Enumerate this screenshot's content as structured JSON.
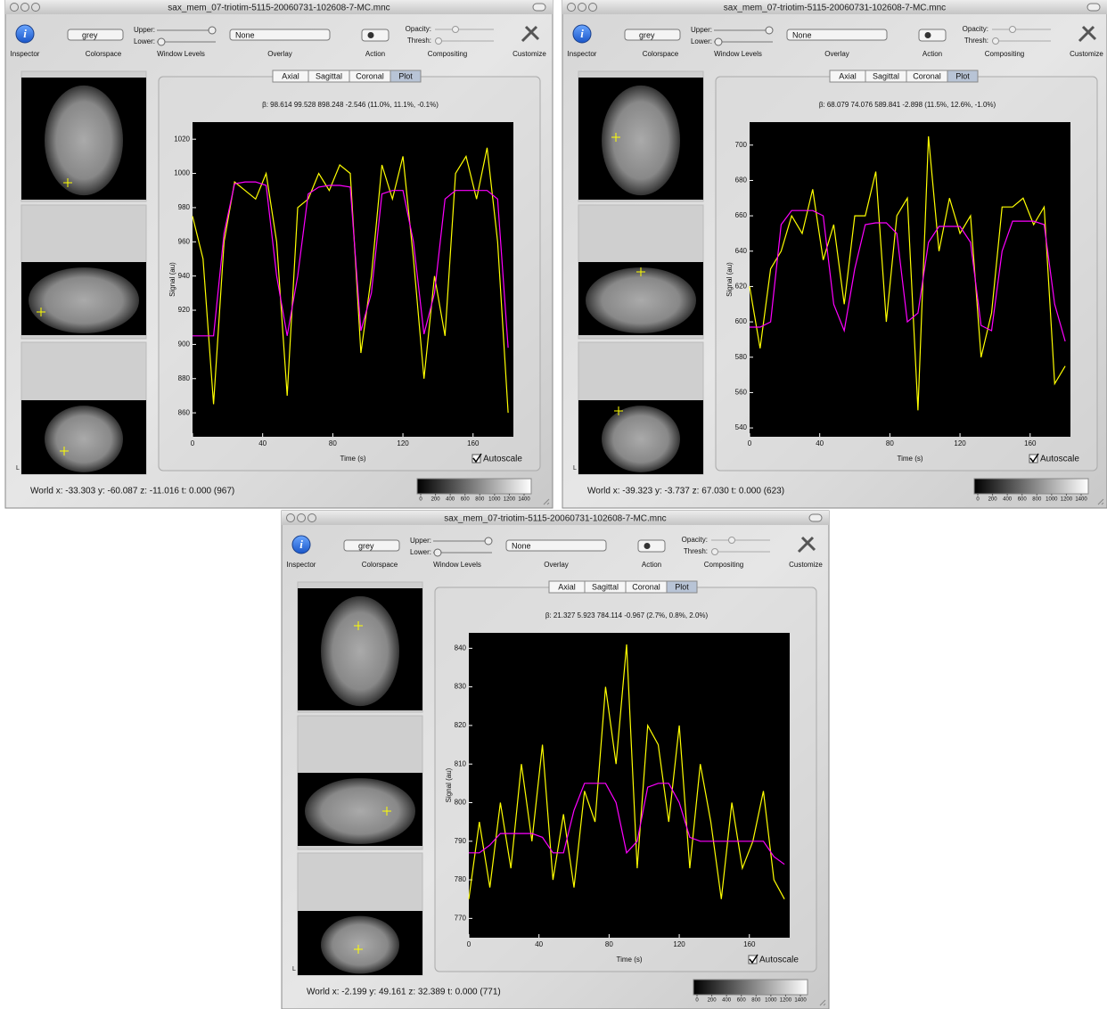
{
  "windows": [
    {
      "title": "sax_mem_07-triotim-5115-20060731-102608-7-MC.mnc",
      "toolbar": {
        "colorspace": "grey",
        "upper": "Upper:",
        "lower": "Lower:",
        "overlay": "None",
        "opacity": "Opacity:",
        "thresh": "Thresh:",
        "labels": [
          "Inspector",
          "Colorspace",
          "Window Levels",
          "Overlay",
          "Action",
          "Compositing",
          "Customize"
        ]
      },
      "tabs": [
        "Axial",
        "Sagittal",
        "Coronal",
        "Plot"
      ],
      "selected_tab": 3,
      "beta": "β:  98.614  99.528  898.248  -2.546   (11.0%, 11.1%, -0.1%)",
      "chart": {
        "type": "line",
        "x_label": "Time (s)",
        "y_label": "Signal (au)",
        "x": [
          0,
          6,
          12,
          18,
          24,
          30,
          36,
          42,
          48,
          54,
          60,
          66,
          72,
          78,
          84,
          90,
          96,
          102,
          108,
          114,
          120,
          126,
          132,
          138,
          144,
          150,
          156,
          162,
          168,
          174,
          180
        ],
        "series": [
          {
            "color": "#ffff00",
            "values": [
              975,
              950,
              865,
              960,
              995,
              990,
              985,
              1000,
              960,
              870,
              980,
              985,
              1000,
              990,
              1005,
              1000,
              895,
              940,
              1005,
              985,
              1010,
              950,
              880,
              940,
              905,
              1000,
              1010,
              985,
              1015,
              960,
              860
            ]
          },
          {
            "color": "#ff00ff",
            "values": [
              905,
              905,
              905,
              965,
              994,
              995,
              995,
              993,
              940,
              905,
              940,
              988,
              992,
              993,
              993,
              992,
              908,
              930,
              988,
              990,
              990,
              960,
              906,
              930,
              985,
              990,
              990,
              990,
              990,
              985,
              898
            ]
          }
        ],
        "xlim": [
          0,
          183
        ],
        "ylim": [
          846,
          1030
        ],
        "xticks": [
          0,
          40,
          80,
          120,
          160
        ],
        "yticks": [
          860,
          880,
          900,
          920,
          940,
          960,
          980,
          1000,
          1020
        ]
      },
      "autoscale": "Autoscale",
      "autoscale_checked": true,
      "orientation_label": "L",
      "world": "World x: -33.303   y: -60.087   z: -11.016   t:  0.000   (967)",
      "colorbar_ticks": [
        0,
        200,
        400,
        600,
        800,
        1000,
        1200,
        1400
      ]
    },
    {
      "title": "sax_mem_07-triotim-5115-20060731-102608-7-MC.mnc",
      "toolbar": {
        "colorspace": "grey",
        "upper": "Upper:",
        "lower": "Lower:",
        "overlay": "None",
        "opacity": "Opacity:",
        "thresh": "Thresh:",
        "labels": [
          "Inspector",
          "Colorspace",
          "Window Levels",
          "Overlay",
          "Action",
          "Compositing",
          "Customize"
        ]
      },
      "tabs": [
        "Axial",
        "Sagittal",
        "Coronal",
        "Plot"
      ],
      "selected_tab": 3,
      "beta": "β:  68.079  74.076  589.841  -2.898   (11.5%, 12.6%, -1.0%)",
      "chart": {
        "type": "line",
        "x_label": "Time (s)",
        "y_label": "Signal (au)",
        "x": [
          0,
          6,
          12,
          18,
          24,
          30,
          36,
          42,
          48,
          54,
          60,
          66,
          72,
          78,
          84,
          90,
          96,
          102,
          108,
          114,
          120,
          126,
          132,
          138,
          144,
          150,
          156,
          162,
          168,
          174,
          180
        ],
        "series": [
          {
            "color": "#ffff00",
            "values": [
              620,
              585,
              630,
              640,
              660,
              650,
              675,
              635,
              655,
              610,
              660,
              660,
              685,
              600,
              660,
              670,
              550,
              705,
              640,
              670,
              650,
              660,
              580,
              605,
              665,
              665,
              670,
              655,
              665,
              565,
              575
            ]
          },
          {
            "color": "#ff00ff",
            "values": [
              597,
              597,
              600,
              655,
              663,
              663,
              663,
              660,
              610,
              595,
              630,
              655,
              656,
              656,
              650,
              600,
              605,
              645,
              654,
              654,
              654,
              645,
              598,
              595,
              640,
              657,
              657,
              657,
              655,
              610,
              589
            ]
          }
        ],
        "xlim": [
          0,
          183
        ],
        "ylim": [
          535,
          713
        ],
        "xticks": [
          0,
          40,
          80,
          120,
          160
        ],
        "yticks": [
          540,
          560,
          580,
          600,
          620,
          640,
          660,
          680,
          700
        ]
      },
      "autoscale": "Autoscale",
      "autoscale_checked": true,
      "orientation_label": "L",
      "world": "World x: -39.323   y: -3.737   z: 67.030   t:  0.000   (623)",
      "colorbar_ticks": [
        0,
        200,
        400,
        600,
        800,
        1000,
        1200,
        1400
      ]
    },
    {
      "title": "sax_mem_07-triotim-5115-20060731-102608-7-MC.mnc",
      "toolbar": {
        "colorspace": "grey",
        "upper": "Upper:",
        "lower": "Lower:",
        "overlay": "None",
        "opacity": "Opacity:",
        "thresh": "Thresh:",
        "labels": [
          "Inspector",
          "Colorspace",
          "Window Levels",
          "Overlay",
          "Action",
          "Compositing",
          "Customize"
        ]
      },
      "tabs": [
        "Axial",
        "Sagittal",
        "Coronal",
        "Plot"
      ],
      "selected_tab": 3,
      "beta": "β:  21.327  5.923  784.114  -0.967   (2.7%, 0.8%, 2.0%)",
      "chart": {
        "type": "line",
        "x_label": "Time (s)",
        "y_label": "Signal (au)",
        "x": [
          0,
          6,
          12,
          18,
          24,
          30,
          36,
          42,
          48,
          54,
          60,
          66,
          72,
          78,
          84,
          90,
          96,
          102,
          108,
          114,
          120,
          126,
          132,
          138,
          144,
          150,
          156,
          162,
          168,
          174,
          180
        ],
        "series": [
          {
            "color": "#ffff00",
            "values": [
              775,
              795,
              778,
              800,
              783,
              810,
              790,
              815,
              780,
              797,
              778,
              803,
              795,
              830,
              810,
              841,
              783,
              820,
              815,
              795,
              820,
              783,
              810,
              795,
              775,
              800,
              783,
              790,
              803,
              780,
              775
            ]
          },
          {
            "color": "#ff00ff",
            "values": [
              787,
              787,
              789,
              792,
              792,
              792,
              792,
              791,
              787,
              787,
              798,
              805,
              805,
              805,
              800,
              787,
              790,
              804,
              805,
              805,
              800,
              791,
              790,
              790,
              790,
              790,
              790,
              790,
              790,
              786,
              784
            ]
          }
        ],
        "xlim": [
          0,
          183
        ],
        "ylim": [
          765,
          844
        ],
        "xticks": [
          0,
          40,
          80,
          120,
          160
        ],
        "yticks": [
          770,
          780,
          790,
          800,
          810,
          820,
          830,
          840
        ]
      },
      "autoscale": "Autoscale",
      "autoscale_checked": true,
      "orientation_label": "L",
      "world": "World x: -2.199   y: 49.161   z: 32.389   t:  0.000   (771)",
      "colorbar_ticks": [
        0,
        200,
        400,
        600,
        800,
        1000,
        1200,
        1400
      ]
    }
  ]
}
